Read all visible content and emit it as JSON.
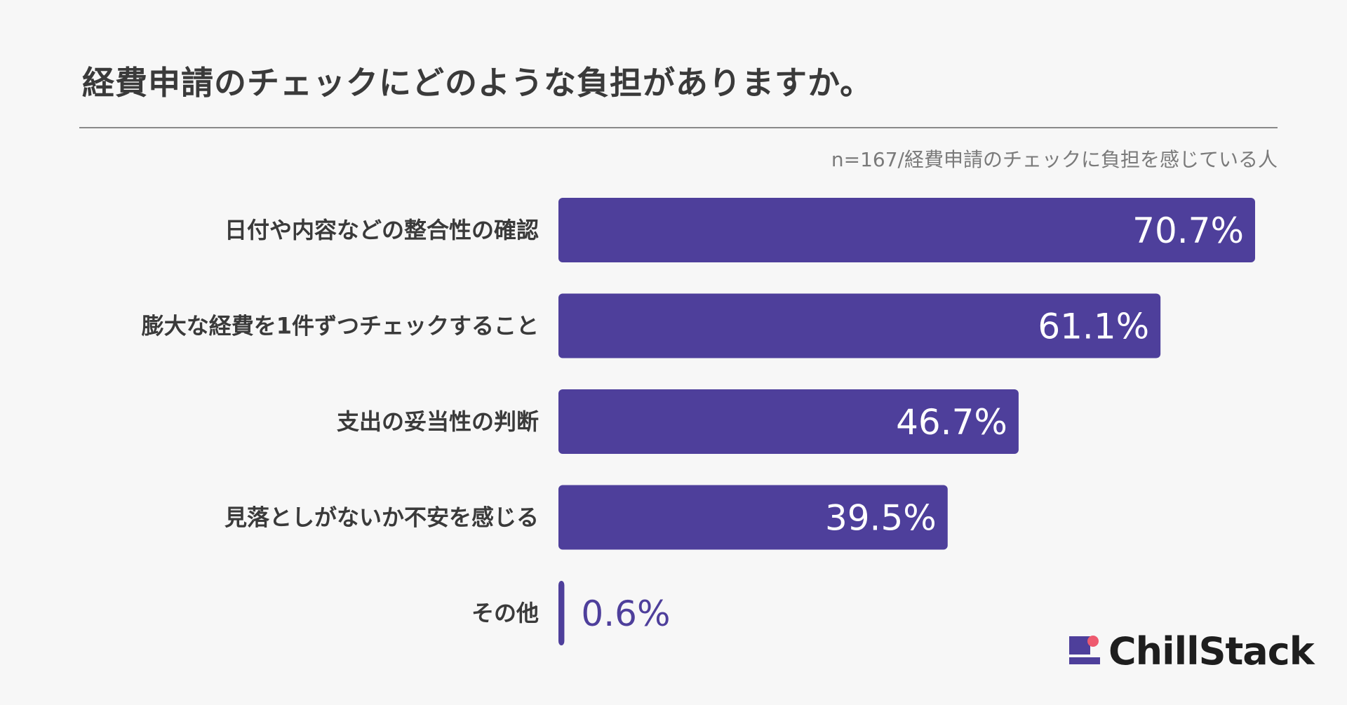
{
  "title": "経費申請のチェックにどのような負担がありますか。",
  "note": "n=167/経費申請のチェックに負担を感じている人",
  "logo": {
    "icon": "chillstack-logo-icon",
    "text": "ChillStack"
  },
  "colors": {
    "bar": "#4e3f9b",
    "bar_label_inside": "#ffffff",
    "bar_label_outside": "#4e3f9b",
    "accent_dot": "#ee5a6f"
  },
  "chart_data": {
    "type": "bar",
    "orientation": "horizontal",
    "categories": [
      "日付や内容などの整合性の確認",
      "膨大な経費を1件ずつチェックすること",
      "支出の妥当性の判断",
      "見落としがないか不安を感じる",
      "その他"
    ],
    "values": [
      70.7,
      61.1,
      46.7,
      39.5,
      0.6
    ],
    "value_labels": [
      "70.7%",
      "61.1%",
      "46.7%",
      "39.5%",
      "0.6%"
    ],
    "unit": "%",
    "xlim": [
      0,
      70.7
    ],
    "grid": false,
    "legend": "none"
  }
}
